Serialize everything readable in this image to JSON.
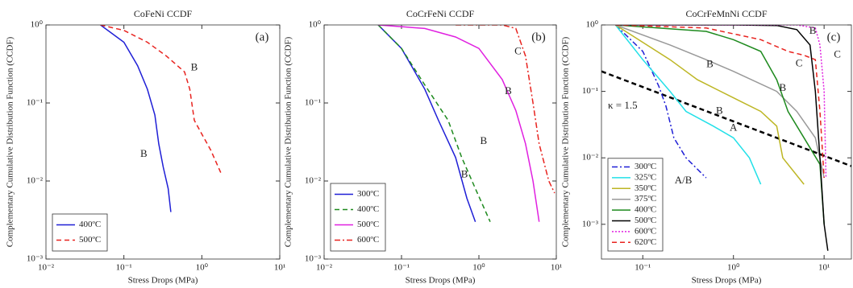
{
  "chart_data": [
    {
      "type": "line",
      "title": "CoFeNi CCDF",
      "tag": "(a)",
      "xlabel": "Stress Drops (MPa)",
      "ylabel": "Complementary Cumulative Distribution Function (CCDF)",
      "xscale": "log",
      "yscale": "log",
      "xlim": [
        0.01,
        10
      ],
      "ylim": [
        0.001,
        1
      ],
      "xticks": [
        {
          "value": 0.01,
          "label": "10⁻²"
        },
        {
          "value": 0.1,
          "label": "10⁻¹"
        },
        {
          "value": 1,
          "label": "10⁰"
        },
        {
          "value": 10,
          "label": "10¹"
        }
      ],
      "yticks": [
        {
          "value": 0.001,
          "label": "10⁻³"
        },
        {
          "value": 0.01,
          "label": "10⁻²"
        },
        {
          "value": 0.1,
          "label": "10⁻¹"
        },
        {
          "value": 1,
          "label": "10⁰"
        }
      ],
      "legend": "lower left",
      "series": [
        {
          "name": "400ºC",
          "color": "#1f1fd6",
          "dash": "solid",
          "x": [
            0.05,
            0.1,
            0.15,
            0.2,
            0.25,
            0.28,
            0.32,
            0.37,
            0.4
          ],
          "values": [
            1,
            0.6,
            0.3,
            0.15,
            0.07,
            0.03,
            0.015,
            0.008,
            0.004
          ]
        },
        {
          "name": "500ºC",
          "color": "#e8231f",
          "dash": "dashed",
          "x": [
            0.05,
            0.1,
            0.2,
            0.35,
            0.6,
            0.7,
            0.8,
            1.0,
            1.3,
            1.8
          ],
          "values": [
            1,
            0.85,
            0.6,
            0.4,
            0.25,
            0.15,
            0.06,
            0.04,
            0.025,
            0.012
          ]
        }
      ],
      "annotations": [
        {
          "text": "B",
          "x": 0.8,
          "y": 0.28,
          "color": "#e8231f"
        },
        {
          "text": "B",
          "x": 0.18,
          "y": 0.022,
          "color": "#1f1fd6"
        }
      ]
    },
    {
      "type": "line",
      "title": "CoCrFeNi CCDF",
      "tag": "(b)",
      "xlabel": "Stress Drops (MPa)",
      "ylabel": "Complementary Cumulative Distribution Function (CCDF)",
      "xscale": "log",
      "yscale": "log",
      "xlim": [
        0.01,
        10
      ],
      "ylim": [
        0.001,
        1
      ],
      "xticks": [
        {
          "value": 0.01,
          "label": "10⁻²"
        },
        {
          "value": 0.1,
          "label": "10⁻¹"
        },
        {
          "value": 1,
          "label": "10⁰"
        },
        {
          "value": 10,
          "label": "10¹"
        }
      ],
      "yticks": [
        {
          "value": 0.001,
          "label": "10⁻³"
        },
        {
          "value": 0.01,
          "label": "10⁻²"
        },
        {
          "value": 0.1,
          "label": "10⁻¹"
        },
        {
          "value": 1,
          "label": "10⁰"
        }
      ],
      "legend": "lower left",
      "series": [
        {
          "name": "300ºC",
          "color": "#1f1fd6",
          "dash": "solid",
          "x": [
            0.05,
            0.1,
            0.2,
            0.3,
            0.5,
            0.7,
            0.9
          ],
          "values": [
            1,
            0.5,
            0.15,
            0.06,
            0.02,
            0.006,
            0.003
          ]
        },
        {
          "name": "400ºC",
          "color": "#1e8a1e",
          "dash": "dashed",
          "x": [
            0.05,
            0.1,
            0.2,
            0.4,
            0.6,
            0.9,
            1.4
          ],
          "values": [
            1,
            0.5,
            0.17,
            0.06,
            0.02,
            0.008,
            0.003
          ]
        },
        {
          "name": "500ºC",
          "color": "#e020e0",
          "dash": "solid",
          "x": [
            0.05,
            0.2,
            0.5,
            1,
            2,
            3,
            4,
            5,
            6
          ],
          "values": [
            1,
            0.9,
            0.7,
            0.5,
            0.2,
            0.08,
            0.03,
            0.01,
            0.003
          ]
        },
        {
          "name": "600ºC",
          "color": "#e8231f",
          "dash": "dashdot",
          "x": [
            0.5,
            2,
            3,
            4,
            5,
            6,
            8,
            9.5
          ],
          "values": [
            1,
            1,
            0.9,
            0.4,
            0.1,
            0.03,
            0.01,
            0.007
          ]
        }
      ],
      "annotations": [
        {
          "text": "C",
          "x": 3.2,
          "y": 0.45,
          "color": "#e8231f"
        },
        {
          "text": "B",
          "x": 2.4,
          "y": 0.14,
          "color": "#e020e0"
        },
        {
          "text": "B",
          "x": 1.15,
          "y": 0.032,
          "color": "#1e8a1e"
        },
        {
          "text": "B",
          "x": 0.65,
          "y": 0.012,
          "color": "#1f1fd6"
        }
      ]
    },
    {
      "type": "line",
      "title": "CoCrFeMnNi CCDF",
      "tag": "(c)",
      "xlabel": "Stress Drops (MPa)",
      "ylabel": "Complementary Cumulative Distribution Function (CCDF)",
      "xscale": "log",
      "yscale": "log",
      "xlim": [
        0.035,
        20
      ],
      "ylim": [
        0.0003,
        1
      ],
      "xticks": [
        {
          "value": 0.1,
          "label": "10⁻¹"
        },
        {
          "value": 1,
          "label": "10⁰"
        },
        {
          "value": 10,
          "label": "10¹"
        }
      ],
      "yticks": [
        {
          "value": 0.001,
          "label": "10⁻³"
        },
        {
          "value": 0.01,
          "label": "10⁻²"
        },
        {
          "value": 0.1,
          "label": "10⁻¹"
        },
        {
          "value": 1,
          "label": "10⁰"
        }
      ],
      "legend": "lower left",
      "series": [
        {
          "name": "300ºC",
          "color": "#1f1fd6",
          "dash": "dashdot",
          "x": [
            0.05,
            0.1,
            0.15,
            0.18,
            0.22,
            0.3,
            0.5
          ],
          "values": [
            1,
            0.4,
            0.12,
            0.06,
            0.02,
            0.01,
            0.005
          ]
        },
        {
          "name": "325ºC",
          "color": "#22e0e8",
          "dash": "solid",
          "x": [
            0.05,
            0.1,
            0.2,
            0.3,
            0.6,
            1.0,
            1.5,
            2
          ],
          "values": [
            1,
            0.3,
            0.1,
            0.05,
            0.03,
            0.02,
            0.01,
            0.004
          ]
        },
        {
          "name": "350ºC",
          "color": "#bdb624",
          "dash": "solid",
          "x": [
            0.05,
            0.2,
            0.4,
            1,
            2,
            3,
            3.5,
            6
          ],
          "values": [
            1,
            0.3,
            0.15,
            0.08,
            0.05,
            0.03,
            0.01,
            0.004
          ]
        },
        {
          "name": "375ºC",
          "color": "#999999",
          "dash": "solid",
          "x": [
            0.05,
            0.2,
            0.5,
            1,
            3,
            5,
            8,
            10
          ],
          "values": [
            1,
            0.5,
            0.3,
            0.2,
            0.1,
            0.05,
            0.02,
            0.005
          ]
        },
        {
          "name": "400ºC",
          "color": "#1e8a1e",
          "dash": "solid",
          "x": [
            0.05,
            0.5,
            1,
            2,
            3,
            4,
            6,
            9,
            10
          ],
          "values": [
            1,
            0.8,
            0.6,
            0.4,
            0.15,
            0.05,
            0.02,
            0.008,
            0.001
          ]
        },
        {
          "name": "500ºC",
          "color": "#000000",
          "dash": "solid",
          "x": [
            0.05,
            1,
            3,
            5,
            7,
            8,
            9,
            10,
            11
          ],
          "values": [
            1,
            1,
            0.98,
            0.85,
            0.5,
            0.1,
            0.01,
            0.001,
            0.0004
          ]
        },
        {
          "name": "600ºC",
          "color": "#e020e0",
          "dash": "dotted",
          "x": [
            0.05,
            5,
            8,
            9,
            10,
            10.5
          ],
          "values": [
            1,
            1,
            0.9,
            0.5,
            0.1,
            0.005
          ]
        },
        {
          "name": "620ºC",
          "color": "#e8231f",
          "dash": "dashed",
          "x": [
            0.05,
            0.5,
            2,
            4,
            6,
            8,
            9,
            10
          ],
          "values": [
            1,
            0.9,
            0.6,
            0.4,
            0.35,
            0.3,
            0.05,
            0.005
          ]
        }
      ],
      "reference_line": {
        "color": "#000000",
        "dash": "dashed",
        "x": [
          0.035,
          20
        ],
        "values": [
          0.2,
          0.0075
        ]
      },
      "annotations": [
        {
          "text": "κ = 1.5",
          "x": 0.06,
          "y": 0.06,
          "color": "#000000"
        },
        {
          "text": "B",
          "x": 7.5,
          "y": 0.8,
          "color": "#000000"
        },
        {
          "text": "C",
          "x": 14,
          "y": 0.35,
          "color": "#e020e0"
        },
        {
          "text": "C",
          "x": 5.3,
          "y": 0.26,
          "color": "#e8231f"
        },
        {
          "text": "B",
          "x": 3.5,
          "y": 0.11,
          "color": "#1e8a1e"
        },
        {
          "text": "B",
          "x": 0.55,
          "y": 0.25,
          "color": "#999999"
        },
        {
          "text": "B",
          "x": 0.7,
          "y": 0.05,
          "color": "#bdb624"
        },
        {
          "text": "A",
          "x": 1.0,
          "y": 0.028,
          "color": "#22e0e8"
        },
        {
          "text": "A/B",
          "x": 0.28,
          "y": 0.0045,
          "color": "#1f1fd6"
        }
      ]
    }
  ]
}
